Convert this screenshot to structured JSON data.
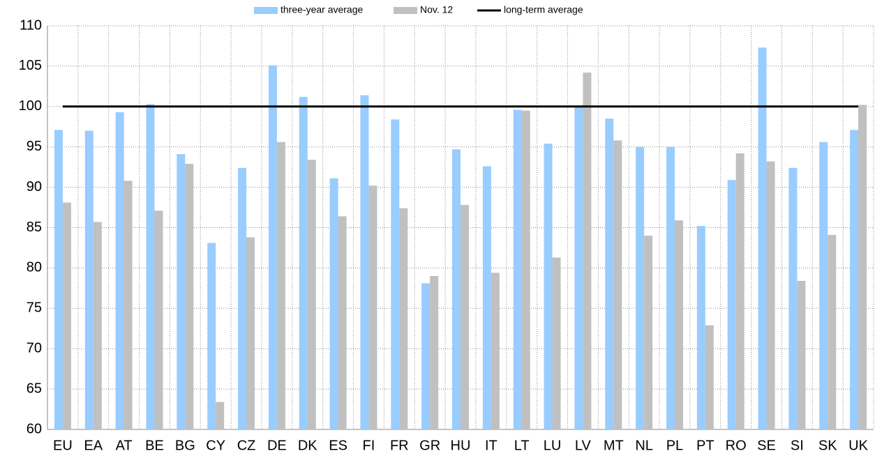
{
  "chart_data": {
    "type": "bar",
    "categories": [
      "EU",
      "EA",
      "AT",
      "BE",
      "BG",
      "CY",
      "CZ",
      "DE",
      "DK",
      "ES",
      "FI",
      "FR",
      "GR",
      "HU",
      "IT",
      "LT",
      "LU",
      "LV",
      "MT",
      "NL",
      "PL",
      "PT",
      "RO",
      "SE",
      "SI",
      "SK",
      "UK"
    ],
    "series": [
      {
        "name": "three-year average",
        "color": "#99ccff",
        "values": [
          97.1,
          97.0,
          99.3,
          100.3,
          94.1,
          83.1,
          92.4,
          105.1,
          101.2,
          91.1,
          101.4,
          98.4,
          78.1,
          94.7,
          92.6,
          99.6,
          95.4,
          100.0,
          98.5,
          95.0,
          95.0,
          85.2,
          90.9,
          107.3,
          92.4,
          95.6,
          97.1
        ]
      },
      {
        "name": "Nov. 12",
        "color": "#c0c0c0",
        "values": [
          88.1,
          85.7,
          90.8,
          87.1,
          92.9,
          63.4,
          83.8,
          95.6,
          93.4,
          86.4,
          90.2,
          87.4,
          79.0,
          87.8,
          79.4,
          99.5,
          81.3,
          104.2,
          95.8,
          84.0,
          85.9,
          72.9,
          94.2,
          93.2,
          78.4,
          84.1,
          100.2
        ]
      },
      {
        "name": "long-term average",
        "color": "#000000",
        "type": "line",
        "value": 100
      }
    ],
    "ylim": [
      60,
      110
    ],
    "yticks": [
      60,
      65,
      70,
      75,
      80,
      85,
      90,
      95,
      100,
      105,
      110
    ],
    "grid": true,
    "legend": "top"
  }
}
